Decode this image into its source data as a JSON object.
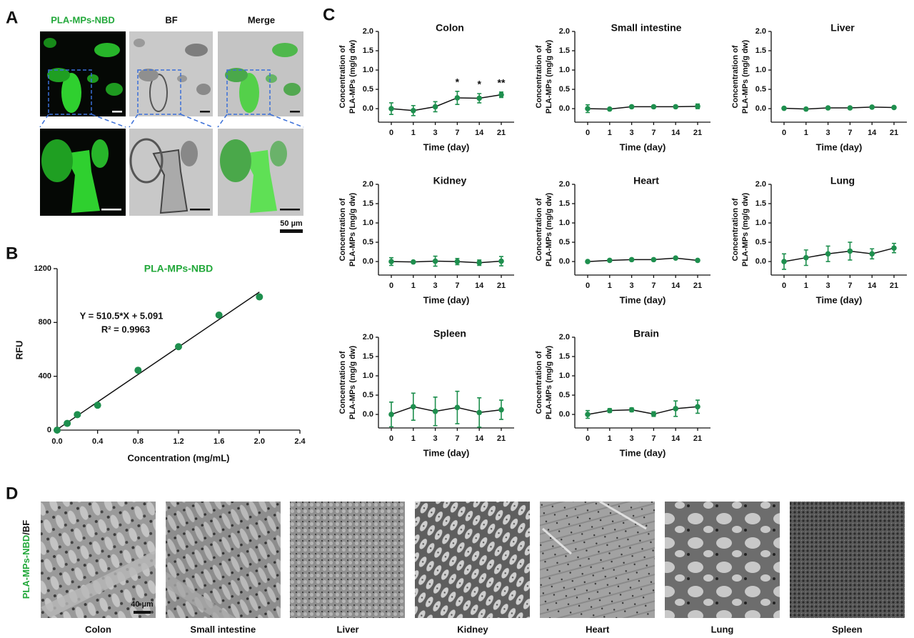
{
  "panel_labels": [
    "A",
    "B",
    "C",
    "D"
  ],
  "panel_a": {
    "columns": [
      "PLA-MPs-NBD",
      "BF",
      "Merge"
    ],
    "scale_bar": "50 µm"
  },
  "panel_d": {
    "side_label": [
      "PLA-MPs-NBD",
      "/BF"
    ],
    "tissues": [
      "Colon",
      "Small intestine",
      "Liver",
      "Kidney",
      "Heart",
      "Lung",
      "Spleen"
    ],
    "scale_bar": "40 µm"
  },
  "chart_data": [
    {
      "type": "scatter",
      "title": "PLA-MPs-NBD",
      "title_color": "#22a83a",
      "x": [
        0,
        0.1,
        0.2,
        0.4,
        0.8,
        1.2,
        1.6,
        2.0
      ],
      "values": [
        0,
        50,
        115,
        185,
        445,
        620,
        855,
        990
      ],
      "color": "#1e8f4e",
      "fit_line": {
        "x": [
          0,
          2.0
        ],
        "values": [
          5,
          1026
        ]
      },
      "annotations": [
        "Y = 510.5*X + 5.091",
        "R² = 0.9963"
      ],
      "xlabel": "Concentration (mg/mL)",
      "ylabel": "RFU",
      "xlim": [
        0,
        2.4
      ],
      "xticks": [
        {
          "value": 0,
          "label": "0.0"
        },
        0.4,
        0.8,
        1.2,
        1.6,
        {
          "value": 2,
          "label": "2.0"
        },
        2.4
      ],
      "ylim": [
        0,
        1200
      ],
      "yticks": [
        0,
        400,
        800,
        1200
      ]
    },
    {
      "type": "line",
      "title": "Colon",
      "categories": [
        "0",
        "1",
        "3",
        "7",
        "14",
        "21"
      ],
      "values": [
        0.0,
        -0.05,
        0.05,
        0.28,
        0.27,
        0.36
      ],
      "errors": [
        0.15,
        0.13,
        0.13,
        0.17,
        0.12,
        0.07
      ],
      "significance": [
        null,
        null,
        null,
        "*",
        "*",
        "**"
      ],
      "color": "#1e8f4e",
      "xlabel": "Time (day)",
      "ylabel": [
        "Concentration of",
        "PLA-MPs (mg/g dw)"
      ],
      "ylim": [
        -0.35,
        2.0
      ],
      "yticks": [
        {
          "value": 0,
          "label": "0.0"
        },
        0.5,
        {
          "value": 1,
          "label": "1.0"
        },
        1.5,
        {
          "value": 2,
          "label": "2.0"
        }
      ]
    },
    {
      "type": "line",
      "title": "Small intestine",
      "categories": [
        "0",
        "1",
        "3",
        "7",
        "14",
        "21"
      ],
      "values": [
        0.0,
        -0.01,
        0.05,
        0.05,
        0.05,
        0.06
      ],
      "errors": [
        0.1,
        0.02,
        0.02,
        0.03,
        0.02,
        0.06
      ],
      "color": "#1e8f4e",
      "xlabel": "Time (day)",
      "ylabel": [
        "Concentration of",
        "PLA-MPs (mg/g dw)"
      ],
      "ylim": [
        -0.35,
        2.0
      ],
      "yticks": [
        {
          "value": 0,
          "label": "0.0"
        },
        0.5,
        {
          "value": 1,
          "label": "1.0"
        },
        1.5,
        {
          "value": 2,
          "label": "2.0"
        }
      ]
    },
    {
      "type": "line",
      "title": "Liver",
      "categories": [
        "0",
        "1",
        "3",
        "7",
        "14",
        "21"
      ],
      "values": [
        0.01,
        -0.01,
        0.02,
        0.02,
        0.04,
        0.03
      ],
      "errors": [
        0.02,
        0.01,
        0.01,
        0.01,
        0.01,
        0.01
      ],
      "color": "#1e8f4e",
      "xlabel": "Time (day)",
      "ylabel": [
        "Concentration of",
        "PLA-MPs (mg/g dw)"
      ],
      "ylim": [
        -0.35,
        2.0
      ],
      "yticks": [
        {
          "value": 0,
          "label": "0.0"
        },
        0.5,
        {
          "value": 1,
          "label": "1.0"
        },
        1.5,
        {
          "value": 2,
          "label": "2.0"
        }
      ]
    },
    {
      "type": "line",
      "title": "Kidney",
      "categories": [
        "0",
        "1",
        "3",
        "7",
        "14",
        "21"
      ],
      "values": [
        0.0,
        -0.01,
        0.01,
        0.0,
        -0.03,
        0.01
      ],
      "errors": [
        0.1,
        0.02,
        0.13,
        0.08,
        0.07,
        0.12
      ],
      "color": "#1e8f4e",
      "xlabel": "Time (day)",
      "ylabel": [
        "Concentration of",
        "PLA-MPs (mg/g dw)"
      ],
      "ylim": [
        -0.35,
        2.0
      ],
      "yticks": [
        {
          "value": 0,
          "label": "0.0"
        },
        0.5,
        {
          "value": 1,
          "label": "1.0"
        },
        1.5,
        {
          "value": 2,
          "label": "2.0"
        }
      ]
    },
    {
      "type": "line",
      "title": "Heart",
      "categories": [
        "0",
        "1",
        "3",
        "7",
        "14",
        "21"
      ],
      "values": [
        0.0,
        0.03,
        0.05,
        0.05,
        0.09,
        0.03
      ],
      "errors": [
        0.01,
        0.02,
        0.01,
        0.01,
        0.02,
        0.01
      ],
      "color": "#1e8f4e",
      "xlabel": "Time (day)",
      "ylabel": [
        "Concentration of",
        "PLA-MPs (mg/g dw)"
      ],
      "ylim": [
        -0.35,
        2.0
      ],
      "yticks": [
        {
          "value": 0,
          "label": "0.0"
        },
        0.5,
        {
          "value": 1,
          "label": "1.0"
        },
        1.5,
        {
          "value": 2,
          "label": "2.0"
        }
      ]
    },
    {
      "type": "line",
      "title": "Lung",
      "categories": [
        "0",
        "1",
        "3",
        "7",
        "14",
        "21"
      ],
      "values": [
        0.0,
        0.1,
        0.2,
        0.27,
        0.2,
        0.35
      ],
      "errors": [
        0.2,
        0.2,
        0.2,
        0.23,
        0.13,
        0.12
      ],
      "color": "#1e8f4e",
      "xlabel": "Time (day)",
      "ylabel": [
        "Concentration of",
        "PLA-MPs (mg/g dw)"
      ],
      "ylim": [
        -0.35,
        2.0
      ],
      "yticks": [
        {
          "value": 0,
          "label": "0.0"
        },
        0.5,
        {
          "value": 1,
          "label": "1.0"
        },
        1.5,
        {
          "value": 2,
          "label": "2.0"
        }
      ]
    },
    {
      "type": "line",
      "title": "Spleen",
      "categories": [
        "0",
        "1",
        "3",
        "7",
        "14",
        "21"
      ],
      "values": [
        0.0,
        0.2,
        0.08,
        0.18,
        0.05,
        0.12
      ],
      "errors": [
        0.32,
        0.35,
        0.37,
        0.42,
        0.38,
        0.25
      ],
      "color": "#1e8f4e",
      "xlabel": "Time (day)",
      "ylabel": [
        "Concentration of",
        "PLA-MPs (mg/g dw)"
      ],
      "ylim": [
        -0.35,
        2.0
      ],
      "yticks": [
        {
          "value": 0,
          "label": "0.0"
        },
        0.5,
        {
          "value": 1,
          "label": "1.0"
        },
        1.5,
        {
          "value": 2,
          "label": "2.0"
        }
      ]
    },
    {
      "type": "line",
      "title": "Brain",
      "categories": [
        "0",
        "1",
        "3",
        "7",
        "14",
        "21"
      ],
      "values": [
        0.0,
        0.1,
        0.12,
        0.01,
        0.15,
        0.2
      ],
      "errors": [
        0.1,
        0.05,
        0.05,
        0.06,
        0.2,
        0.17
      ],
      "color": "#1e8f4e",
      "xlabel": "Time (day)",
      "ylabel": [
        "Concentration of",
        "PLA-MPs (mg/g dw)"
      ],
      "ylim": [
        -0.35,
        2.0
      ],
      "yticks": [
        {
          "value": 0,
          "label": "0.0"
        },
        0.5,
        {
          "value": 1,
          "label": "1.0"
        },
        1.5,
        {
          "value": 2,
          "label": "2.0"
        }
      ]
    }
  ]
}
